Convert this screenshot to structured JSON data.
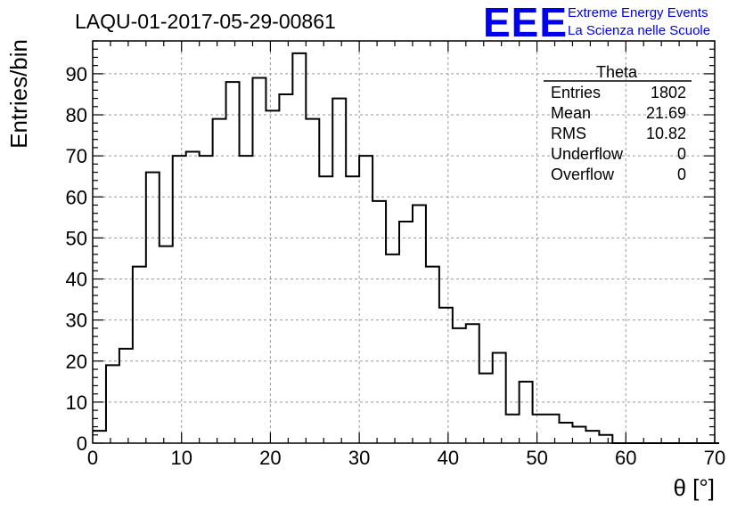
{
  "header": {
    "run_id": "LAQU-01-2017-05-29-00861",
    "logo_mark": "EEE",
    "logo_line1": "Extreme Energy Events",
    "logo_line2": "La Scienza nelle Scuole"
  },
  "stats": {
    "name": "Theta",
    "rows": [
      {
        "label": "Entries",
        "value": "1802"
      },
      {
        "label": "Mean",
        "value": "21.69"
      },
      {
        "label": "RMS",
        "value": "10.82"
      },
      {
        "label": "Underflow",
        "value": "0"
      },
      {
        "label": "Overflow",
        "value": "0"
      }
    ]
  },
  "chart_data": {
    "type": "bar",
    "title": "",
    "xlabel": "θ [°]",
    "ylabel": "Entries/bin",
    "xlim": [
      0,
      70
    ],
    "ylim": [
      0,
      98
    ],
    "grid": true,
    "x_ticks": [
      0,
      10,
      20,
      30,
      40,
      50,
      60,
      70
    ],
    "y_ticks": [
      0,
      10,
      20,
      30,
      40,
      50,
      60,
      70,
      80,
      90
    ],
    "bin_width": 1.5,
    "bin_start": 0,
    "values": [
      3,
      19,
      23,
      43,
      66,
      48,
      70,
      71,
      70,
      79,
      88,
      70,
      89,
      81,
      85,
      95,
      79,
      65,
      84,
      65,
      70,
      59,
      46,
      54,
      58,
      43,
      33,
      28,
      29,
      17,
      22,
      7,
      15,
      7,
      7,
      5,
      4,
      3,
      2,
      0,
      0,
      0,
      0,
      0,
      0,
      0,
      0
    ]
  }
}
